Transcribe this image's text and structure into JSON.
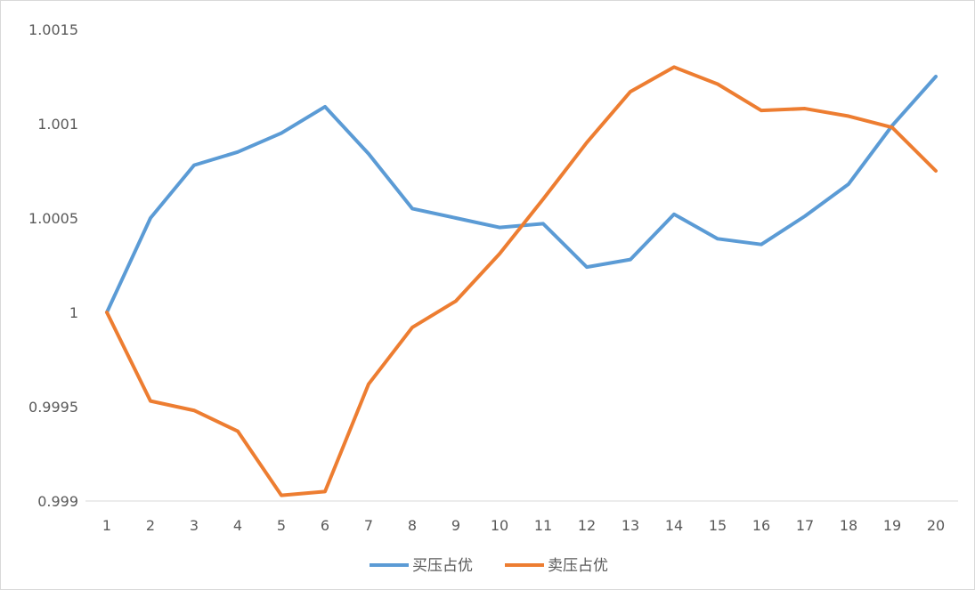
{
  "chart_data": {
    "type": "line",
    "title": "",
    "xlabel": "",
    "ylabel": "",
    "x": [
      1,
      2,
      3,
      4,
      5,
      6,
      7,
      8,
      9,
      10,
      11,
      12,
      13,
      14,
      15,
      16,
      17,
      18,
      19,
      20
    ],
    "ylim": [
      0.999,
      1.0015
    ],
    "y_ticks": [
      "0.999",
      "0.9995",
      "1",
      "1.0005",
      "1.001",
      "1.0015"
    ],
    "grid": false,
    "legend": "bottom",
    "series": [
      {
        "name": "买压占优",
        "color": "#5b9bd5",
        "values": [
          1.0,
          1.0005,
          1.00078,
          1.00085,
          1.00095,
          1.00109,
          1.00084,
          1.00055,
          1.0005,
          1.00045,
          1.00047,
          1.00024,
          1.00028,
          1.00052,
          1.00039,
          1.00036,
          1.00051,
          1.00068,
          1.00099,
          1.00125
        ]
      },
      {
        "name": "卖压占优",
        "color": "#ed7d31",
        "values": [
          1.0,
          0.99953,
          0.99948,
          0.99937,
          0.99903,
          0.99905,
          0.99962,
          0.99992,
          1.00006,
          1.00031,
          1.0006,
          1.0009,
          1.00117,
          1.0013,
          1.00121,
          1.00107,
          1.00108,
          1.00104,
          1.00098,
          1.00075
        ]
      }
    ]
  }
}
